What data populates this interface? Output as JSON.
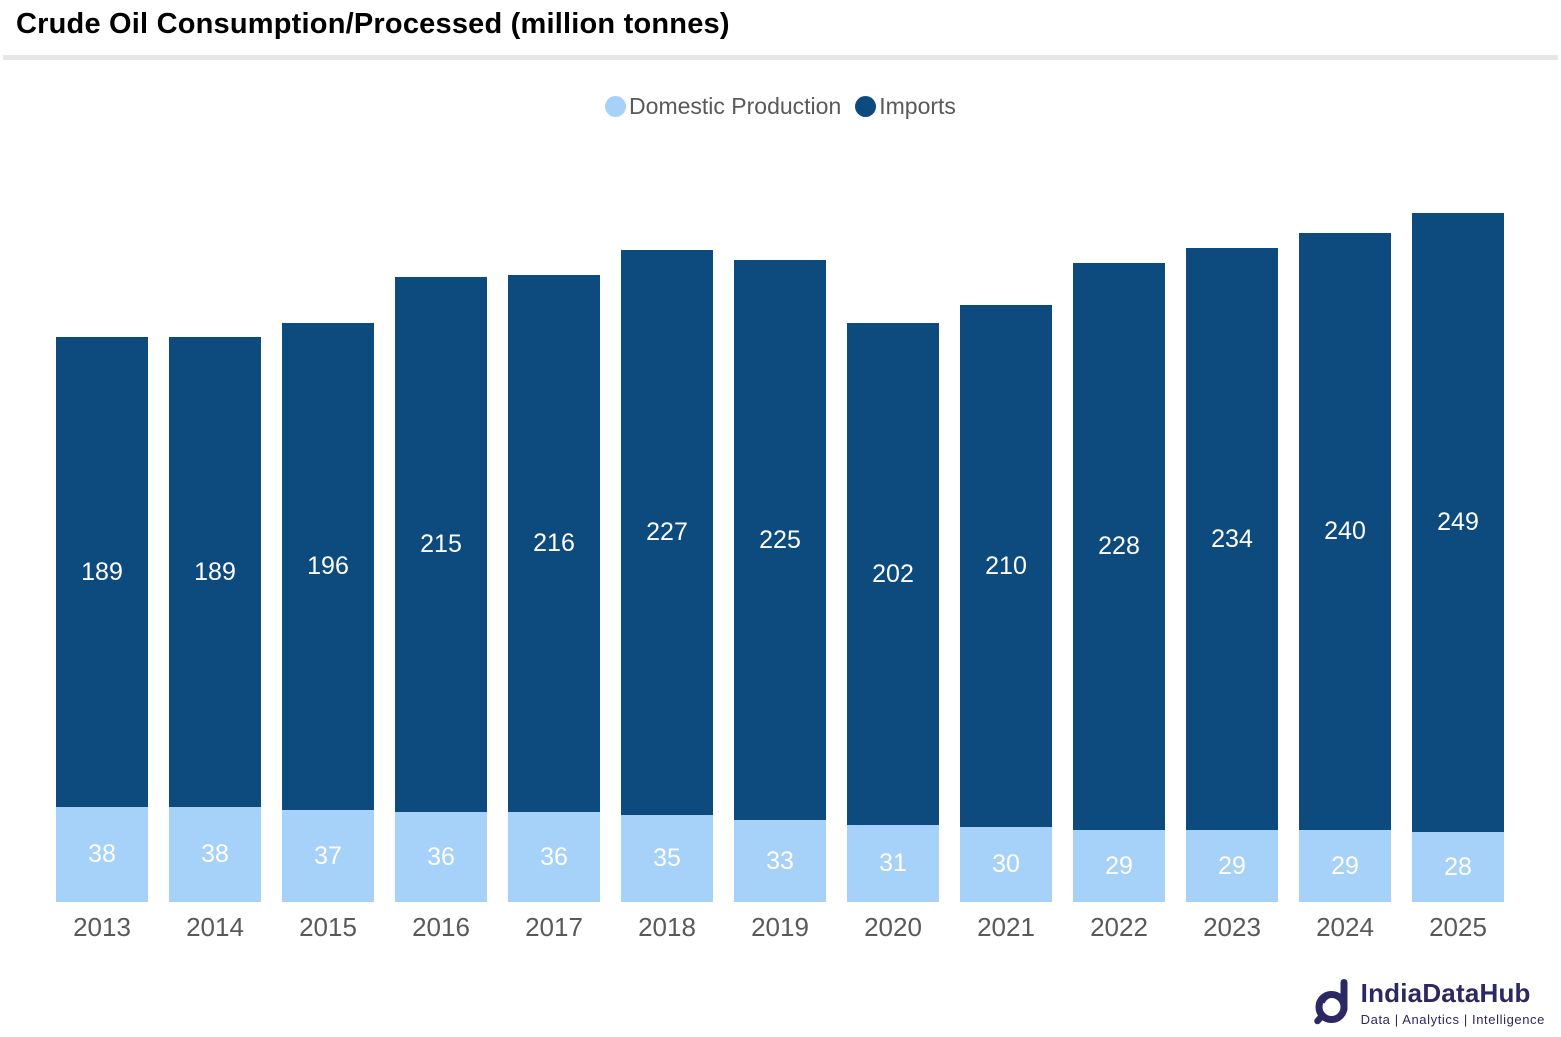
{
  "title": "Crude Oil Consumption/Processed (million tonnes)",
  "legend": {
    "items": [
      {
        "label": "Domestic Production",
        "color": "#a6d1f8"
      },
      {
        "label": "Imports",
        "color": "#0d4a7e"
      }
    ]
  },
  "chart_data": {
    "type": "bar",
    "stacked": true,
    "title": "Crude Oil Consumption/Processed (million tonnes)",
    "categories": [
      "2013",
      "2014",
      "2015",
      "2016",
      "2017",
      "2018",
      "2019",
      "2020",
      "2021",
      "2022",
      "2023",
      "2024",
      "2025"
    ],
    "series": [
      {
        "name": "Domestic Production",
        "color": "#a6d1f8",
        "values": [
          38,
          38,
          37,
          36,
          36,
          35,
          33,
          31,
          30,
          29,
          29,
          29,
          28
        ]
      },
      {
        "name": "Imports",
        "color": "#0d4a7e",
        "values": [
          189,
          189,
          196,
          215,
          216,
          227,
          225,
          202,
          210,
          228,
          234,
          240,
          249
        ]
      }
    ],
    "value_labels": "inside-center",
    "value_label_color": "#ffffff",
    "axis_label_color": "#595959",
    "legend_position": "top-center",
    "grid": false,
    "ylim": [
      0,
      290
    ]
  },
  "logo": {
    "name": "IndiaDataHub",
    "tagline": "Data | Analytics | Intelligence",
    "color": "#2b2864"
  }
}
